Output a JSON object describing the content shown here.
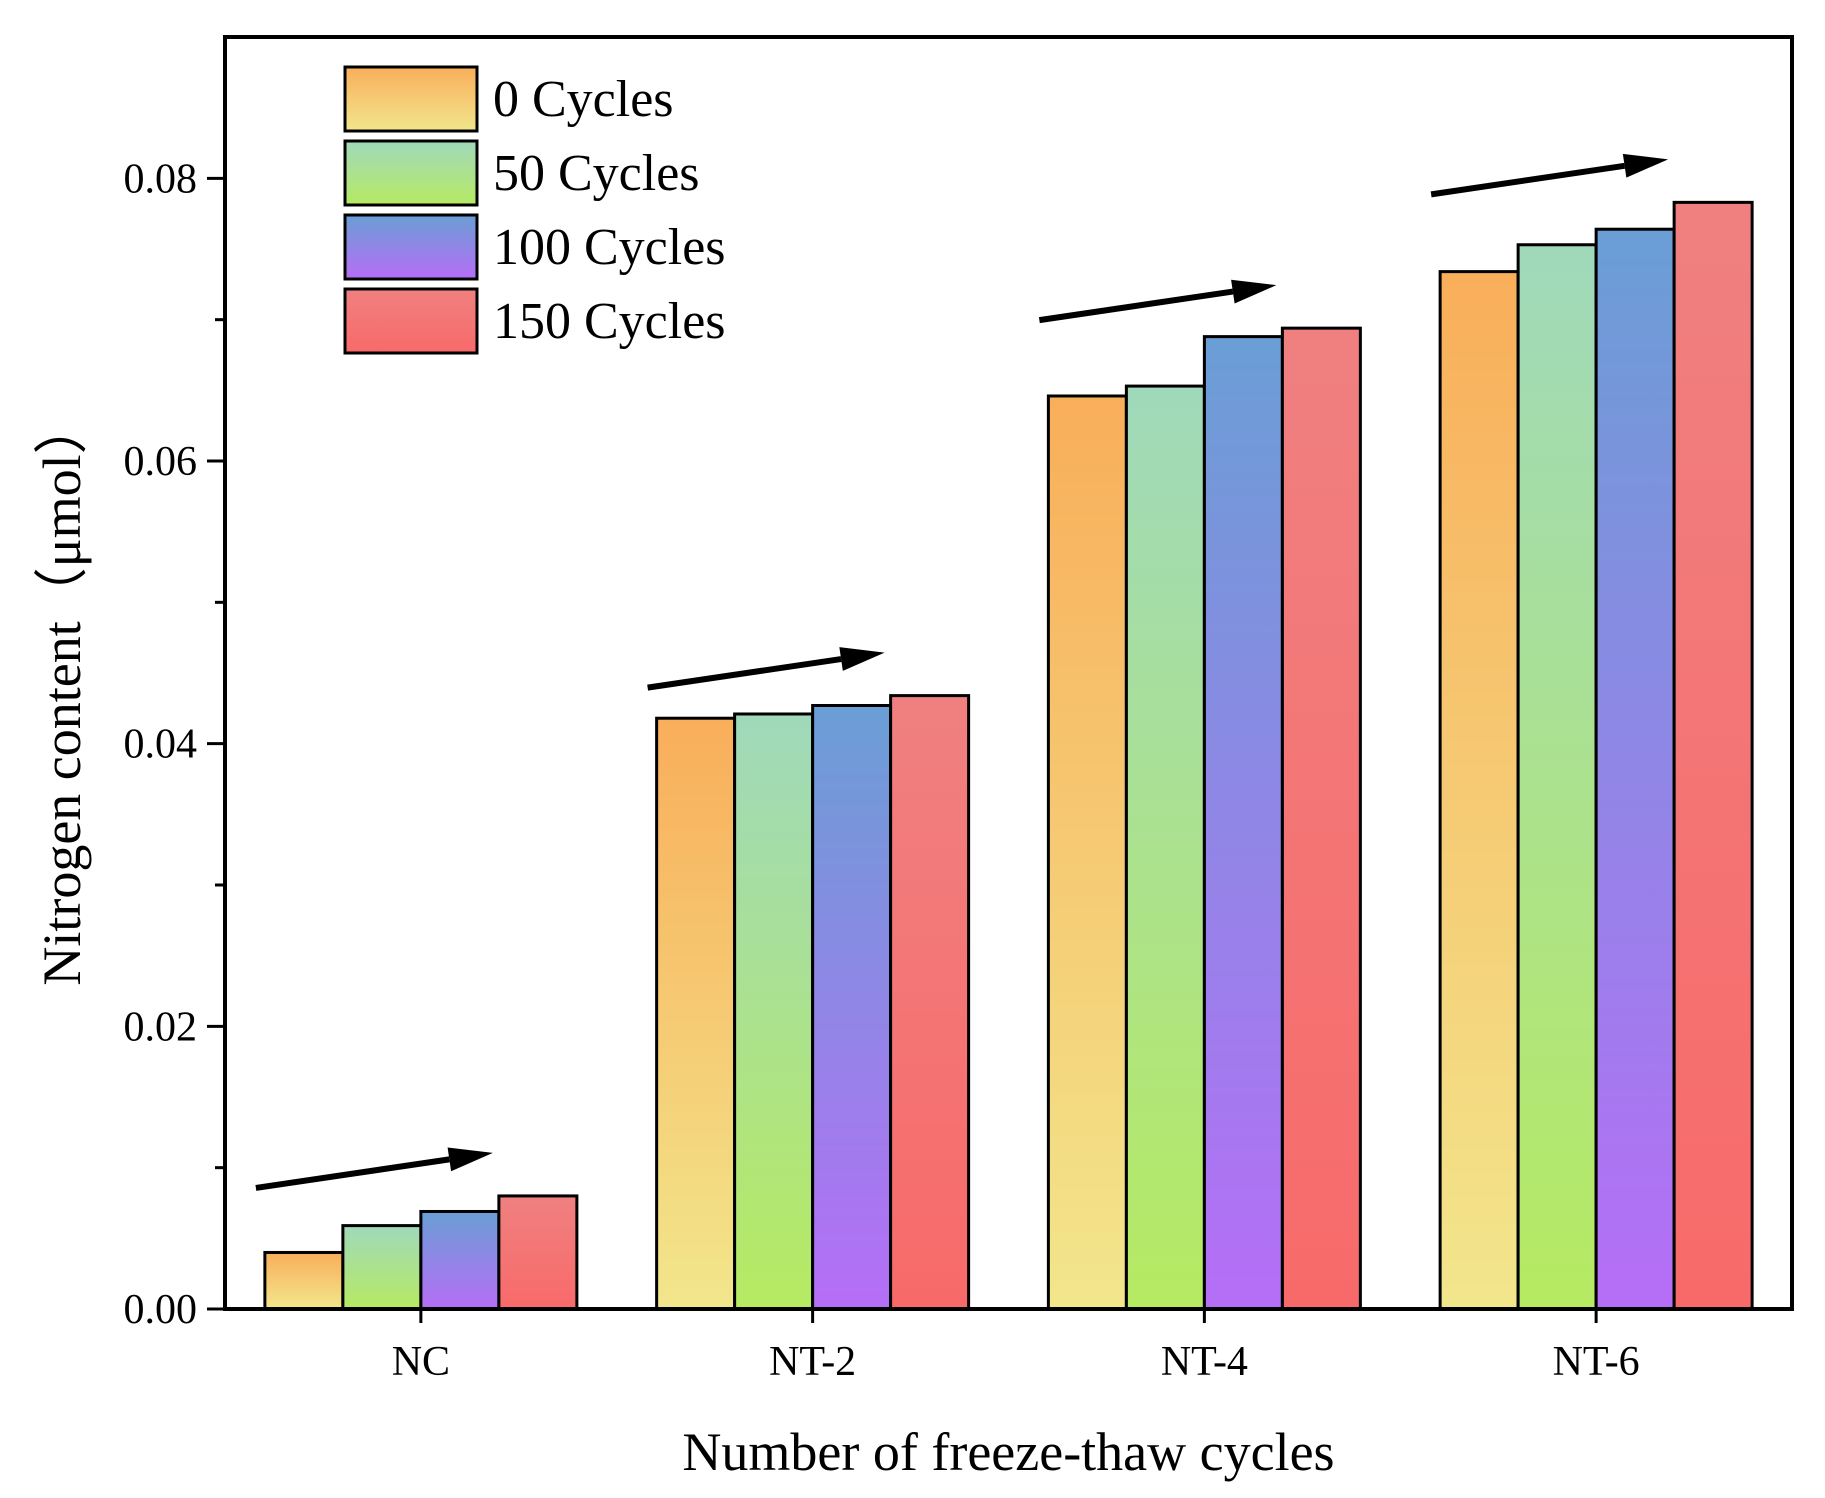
{
  "chart_data": {
    "type": "bar",
    "title": "",
    "xlabel": "Number of freeze-thaw cycles",
    "ylabel": "Nitrogen content（μmol）",
    "ylim": [
      0,
      0.09
    ],
    "yticks": [
      "0.00",
      "0.02",
      "0.04",
      "0.06",
      "0.08"
    ],
    "ytick_values": [
      0,
      0.02,
      0.04,
      0.06,
      0.08
    ],
    "categories": [
      "NC",
      "NT-2",
      "NT-4",
      "NT-6"
    ],
    "legend_position": "top-left",
    "series": [
      {
        "name": "0 Cycles",
        "values": [
          0.004,
          0.0418,
          0.0646,
          0.0734
        ],
        "color_top": "#f9ae5a",
        "color_bottom": "#f2e68c"
      },
      {
        "name": "50 Cycles",
        "values": [
          0.0059,
          0.0421,
          0.0653,
          0.0753
        ],
        "color_top": "#a0d9bb",
        "color_bottom": "#b6ea62"
      },
      {
        "name": "100 Cycles",
        "values": [
          0.0069,
          0.0427,
          0.0688,
          0.0764
        ],
        "color_top": "#6a9ed5",
        "color_bottom": "#b66ef7"
      },
      {
        "name": "150 Cycles",
        "values": [
          0.008,
          0.0434,
          0.0694,
          0.0783
        ],
        "color_top": "#f08080",
        "color_bottom": "#f86a6a"
      }
    ],
    "annotations": [
      "trend-arrow",
      "trend-arrow",
      "trend-arrow",
      "trend-arrow"
    ]
  }
}
